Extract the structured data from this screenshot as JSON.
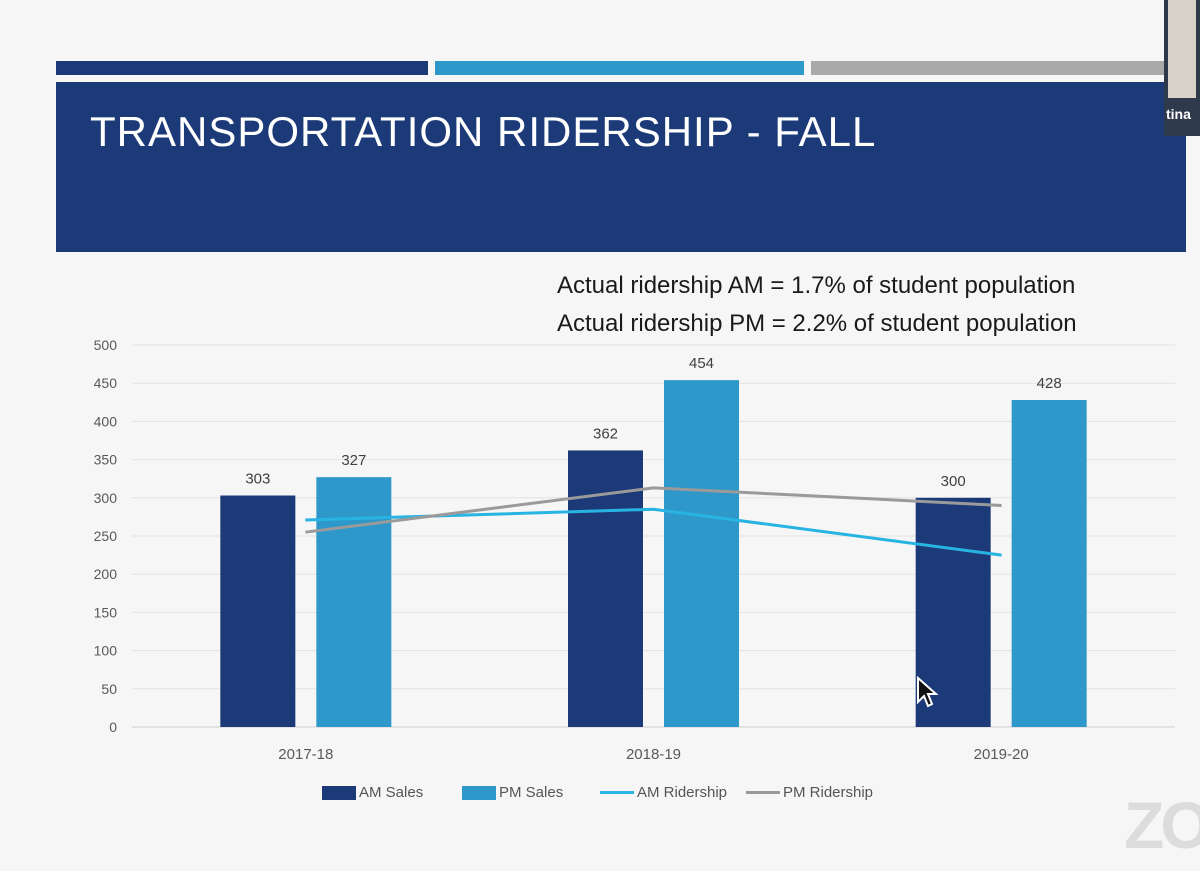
{
  "colors": {
    "navy": "#1c3a78",
    "blue": "#2d98c9",
    "gray_stripe": "#a9a9a9",
    "am_ridership": "#28b4e3",
    "pm_ridership": "#9a9a9a",
    "grid": "#e2e2e2",
    "axis_text": "#595959"
  },
  "slide": {
    "title": "TRANSPORTATION RIDERSHIP - FALL",
    "note_am": "Actual ridership AM = 1.7% of student population",
    "note_pm": "Actual ridership PM = 2.2% of student population"
  },
  "video_thumb": {
    "name": "tina"
  },
  "overlay": {
    "zoom_watermark": "ZO"
  },
  "chart_data": {
    "type": "bar",
    "title": "",
    "xlabel": "",
    "ylabel": "",
    "categories": [
      "2017-18",
      "2018-19",
      "2019-20"
    ],
    "ylim": [
      0,
      500
    ],
    "yticks": [
      0,
      50,
      100,
      150,
      200,
      250,
      300,
      350,
      400,
      450,
      500
    ],
    "grid": true,
    "legend_position": "bottom",
    "series": [
      {
        "name": "AM Sales",
        "kind": "bar",
        "color": "#1c3a78",
        "values": [
          303,
          362,
          300
        ],
        "data_labels": true
      },
      {
        "name": "PM Sales",
        "kind": "bar",
        "color": "#2d98c9",
        "values": [
          327,
          454,
          428
        ],
        "data_labels": true
      },
      {
        "name": "AM Ridership",
        "kind": "line",
        "color": "#28b4e3",
        "values": [
          271,
          285,
          225
        ]
      },
      {
        "name": "PM Ridership",
        "kind": "line",
        "color": "#9a9a9a",
        "values": [
          255,
          313,
          290
        ]
      }
    ]
  }
}
